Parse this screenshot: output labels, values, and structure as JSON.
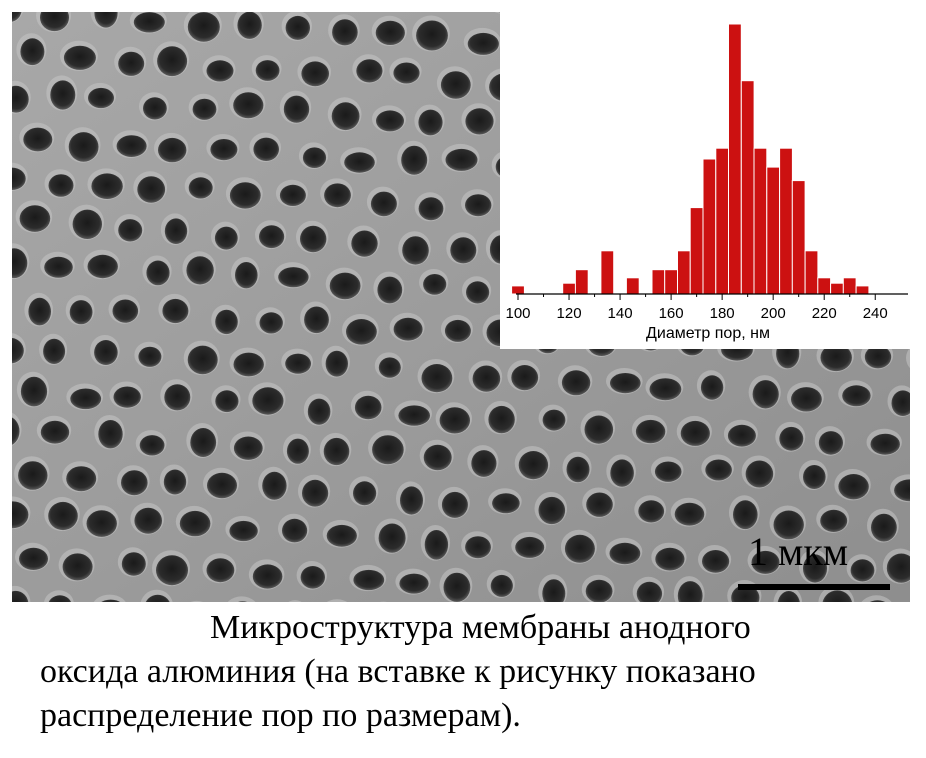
{
  "image": {
    "scale_bar_label": "1 мкм"
  },
  "chart_data": {
    "type": "bar",
    "xlabel": "Диаметр пор, нм",
    "ylabel": "",
    "xlim": [
      100,
      245
    ],
    "ylim": [
      0,
      100
    ],
    "x_ticks": [
      100,
      120,
      140,
      160,
      180,
      200,
      220,
      240
    ],
    "bin_width": 5,
    "bar_color": "#cc1111",
    "x": [
      100,
      120,
      125,
      135,
      145,
      155,
      160,
      165,
      170,
      175,
      180,
      185,
      190,
      195,
      200,
      205,
      210,
      215,
      220,
      225,
      230,
      235
    ],
    "values": [
      3,
      4,
      9,
      16,
      6,
      9,
      9,
      16,
      32,
      50,
      54,
      100,
      79,
      54,
      47,
      54,
      42,
      16,
      6,
      4,
      6,
      3
    ]
  },
  "caption": {
    "line1": "Микроструктура мембраны анодного",
    "line2": "оксида алюминия (на вставке к рисунку показано",
    "line3": "распределение пор по размерам)."
  }
}
